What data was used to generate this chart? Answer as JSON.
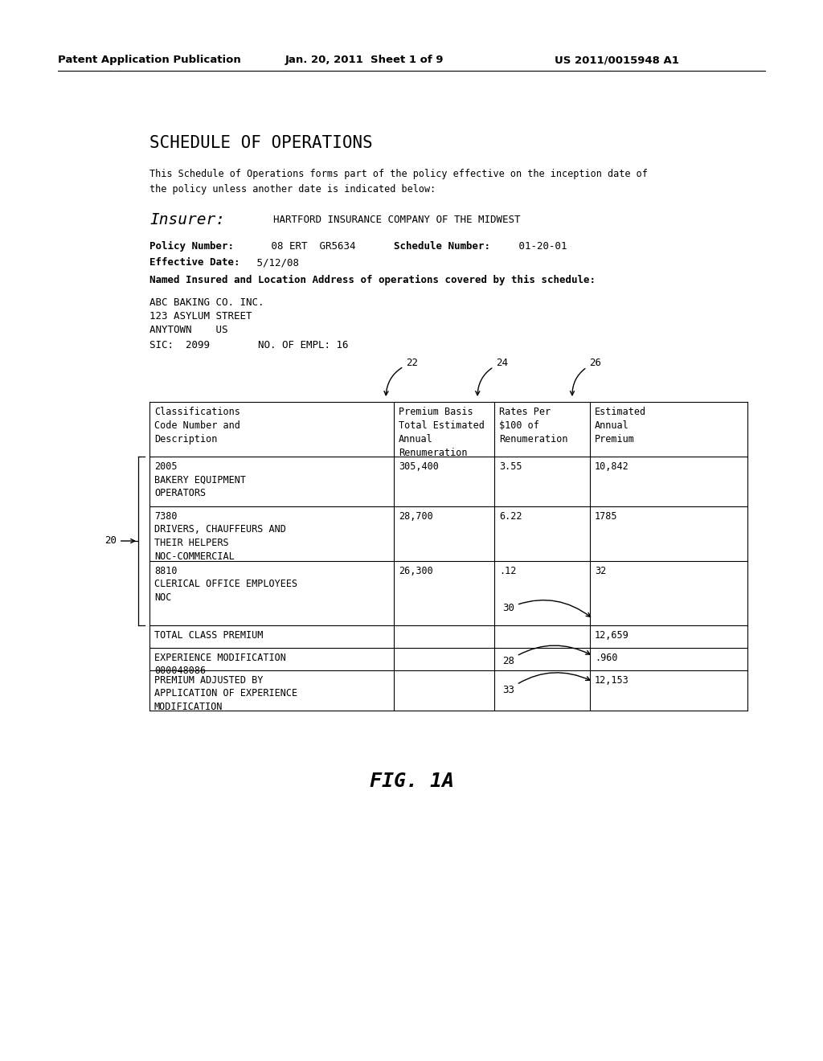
{
  "bg_color": "#ffffff",
  "header_left": "Patent Application Publication",
  "header_mid": "Jan. 20, 2011  Sheet 1 of 9",
  "header_right": "US 2011/0015948 A1",
  "title": "SCHEDULE OF OPERATIONS",
  "intro_text": "This Schedule of Operations forms part of the policy effective on the inception date of\nthe policy unless another date is indicated below:",
  "insurer_label": "Insurer:",
  "insurer_value": "HARTFORD INSURANCE COMPANY OF THE MIDWEST",
  "policy_line1_bold": "Policy Number:",
  "policy_line1_normal": "  08 ERT  GR5634    ",
  "policy_line1_bold2": "Schedule Number:",
  "policy_line1_normal2": "  01-20-01",
  "effective_bold": "Effective Date:",
  "effective_normal": "  5/12/08",
  "named_line": "Named Insured and Location Address of operations covered by this schedule:",
  "address_lines": [
    "ABC BAKING CO. INC.",
    "123 ASYLUM STREET",
    "ANYTOWN    US"
  ],
  "sic_line": "SIC:  2099        NO. OF EMPL: 16",
  "table_headers": [
    "Classifications\nCode Number and\nDescription",
    "Premium Basis\nTotal Estimated\nAnnual\nRenumeration",
    "Rates Per\n$100 of\nRenumeration",
    "Estimated\nAnnual\nPremium"
  ],
  "table_rows": [
    [
      "2005\nBAKERY EQUIPMENT\nOPERATORS",
      "305,400",
      "3.55",
      "10,842"
    ],
    [
      "7380\nDRIVERS, CHAUFFEURS AND\nTHEIR HELPERS\nNOC-COMMERCIAL",
      "28,700",
      "6.22",
      "1785"
    ],
    [
      "8810\nCLERICAL OFFICE EMPLOYEES\nNOC",
      "26,300",
      ".12",
      "32"
    ],
    [
      "TOTAL CLASS PREMIUM",
      "",
      "",
      "12,659"
    ],
    [
      "EXPERIENCE MODIFICATION\n000048086",
      "",
      "",
      ".960"
    ],
    [
      "PREMIUM ADJUSTED BY\nAPPLICATION OF EXPERIENCE\nMODIFICATION",
      "",
      "",
      "12,153"
    ]
  ],
  "fig_caption": "FIG. 1A"
}
